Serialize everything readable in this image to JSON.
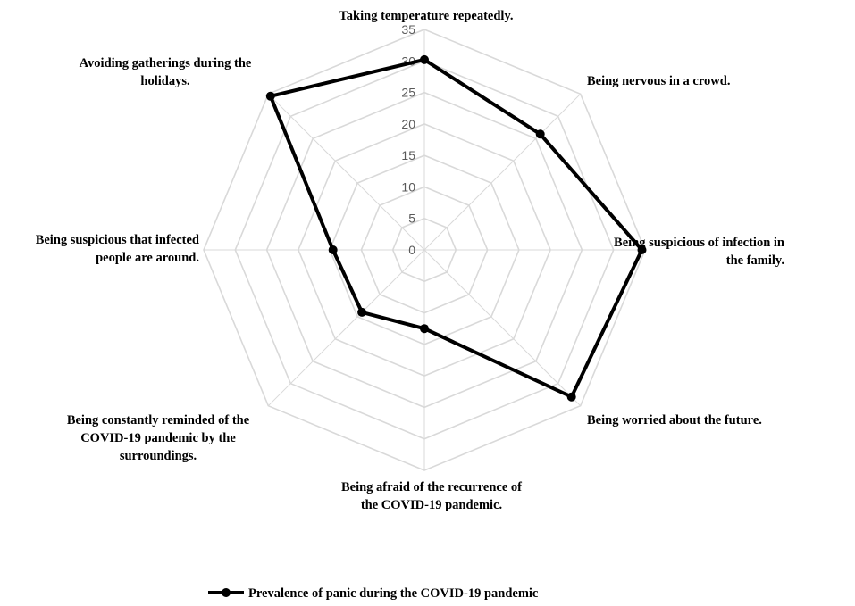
{
  "chart_data": {
    "type": "radar",
    "categories": [
      [
        "Taking temperature repeatedly."
      ],
      [
        "Being nervous in a crowd."
      ],
      [
        "Being suspicious of infection in",
        "the family."
      ],
      [
        "Being worried about the future."
      ],
      [
        "Being afraid of the recurrence of",
        "the COVID-19 pandemic."
      ],
      [
        "Being constantly reminded of the",
        "COVID-19 pandemic by the",
        "surroundings."
      ],
      [
        "Being suspicious that infected",
        "people are around."
      ],
      [
        "Avoiding gatherings during the",
        "holidays."
      ]
    ],
    "series": [
      {
        "name": "Prevalence of panic during the COVID-19 pandemic",
        "values": [
          30.2,
          26.0,
          34.5,
          33.0,
          12.5,
          14.0,
          14.5,
          34.5
        ],
        "color": "#000000"
      }
    ],
    "r_ticks": [
      "0",
      "5",
      "10",
      "15",
      "20",
      "25",
      "30",
      "35"
    ],
    "r_range": [
      0,
      35
    ],
    "grid": true,
    "legend_position": "bottom"
  }
}
